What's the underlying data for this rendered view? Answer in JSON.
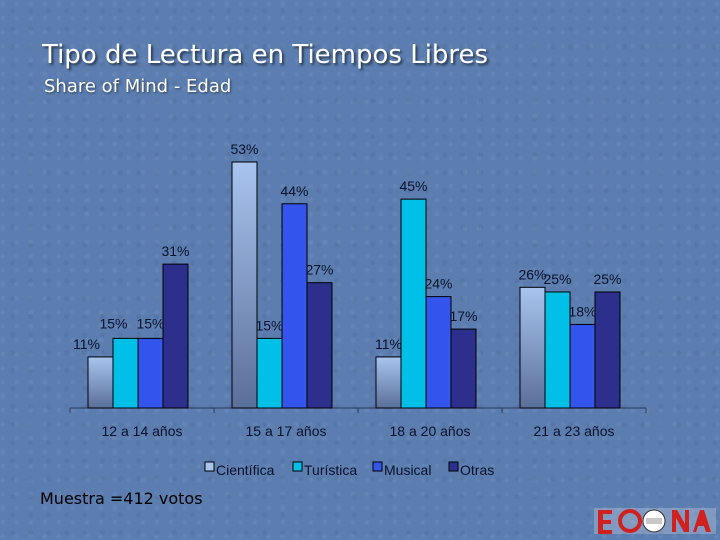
{
  "header": {
    "title": "Tipo de Lectura en Tiempos Libres",
    "subtitle": "Share of Mind - Edad"
  },
  "footer": {
    "sample_note": "Muestra =412 votos"
  },
  "colors": {
    "Cientifica": "#a9c4ee",
    "Turistica": "#00c0e8",
    "Musical": "#3355ee",
    "Otras": "#2c2f8c"
  },
  "chart_data": {
    "type": "bar",
    "title": "",
    "xlabel": "",
    "ylabel": "",
    "ylim": [
      0,
      60
    ],
    "grid": false,
    "legend_position": "bottom",
    "categories": [
      "12 a 14 años",
      "15 a 17 años",
      "18 a 20 años",
      "21 a 23 años"
    ],
    "series": [
      {
        "name": "Científica",
        "values": [
          11,
          53,
          11,
          26
        ],
        "labels": [
          "11%",
          "53%",
          "11%",
          "26%"
        ]
      },
      {
        "name": "Turística",
        "values": [
          15,
          15,
          45,
          25
        ],
        "labels": [
          "15%",
          "15%",
          "45%",
          "25%"
        ]
      },
      {
        "name": "Musical",
        "values": [
          15,
          44,
          24,
          18
        ],
        "labels": [
          "15%",
          "44%",
          "24%",
          "18%"
        ]
      },
      {
        "name": "Otras",
        "values": [
          31,
          27,
          17,
          25
        ],
        "labels": [
          "31%",
          "27%",
          "17%",
          "25%"
        ]
      }
    ]
  }
}
